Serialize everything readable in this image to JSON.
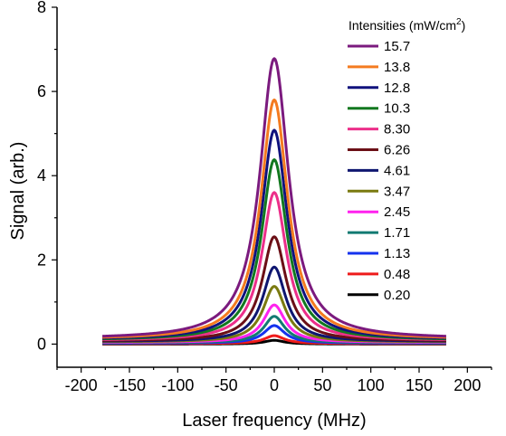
{
  "chart_data": {
    "type": "line",
    "xlabel": "Laser frequency (MHz)",
    "ylabel": "Signal (arb.)",
    "xlim": [
      -225,
      225
    ],
    "ylim": [
      -0.55,
      8
    ],
    "x_ticks": [
      -200,
      -150,
      -100,
      -50,
      0,
      50,
      100,
      150,
      200
    ],
    "y_ticks": [
      0,
      2,
      4,
      6,
      8
    ],
    "x_range_data": [
      -178,
      178
    ],
    "grid": false,
    "legend": {
      "title": "Intensities (mW/cm",
      "title_superscript": "2",
      "title_suffix": ")",
      "placement": "top-right"
    },
    "series": [
      {
        "name": "15.7",
        "color": "#7b1a7e",
        "peak": 6.78,
        "baseline": 0.12,
        "fwhm": 36
      },
      {
        "name": "13.8",
        "color": "#f47b20",
        "peak": 5.8,
        "baseline": 0.11,
        "fwhm": 34
      },
      {
        "name": "12.8",
        "color": "#10127d",
        "peak": 5.08,
        "baseline": 0.1,
        "fwhm": 33
      },
      {
        "name": "10.3",
        "color": "#12781f",
        "peak": 4.38,
        "baseline": 0.09,
        "fwhm": 32
      },
      {
        "name": "8.30",
        "color": "#ec2f8a",
        "peak": 3.6,
        "baseline": 0.08,
        "fwhm": 31
      },
      {
        "name": "6.26",
        "color": "#6b0f16",
        "peak": 2.55,
        "baseline": 0.07,
        "fwhm": 30
      },
      {
        "name": "4.61",
        "color": "#0e1670",
        "peak": 1.83,
        "baseline": 0.06,
        "fwhm": 29
      },
      {
        "name": "3.47",
        "color": "#7a7a10",
        "peak": 1.37,
        "baseline": 0.05,
        "fwhm": 28
      },
      {
        "name": "2.45",
        "color": "#ff22ee",
        "peak": 0.93,
        "baseline": 0.04,
        "fwhm": 27
      },
      {
        "name": "1.71",
        "color": "#127a72",
        "peak": 0.66,
        "baseline": 0.03,
        "fwhm": 26
      },
      {
        "name": "1.13",
        "color": "#1432ee",
        "peak": 0.44,
        "baseline": 0.02,
        "fwhm": 26
      },
      {
        "name": "0.48",
        "color": "#ee1b1b",
        "peak": 0.2,
        "baseline": 0.01,
        "fwhm": 25
      },
      {
        "name": "0.20",
        "color": "#000000",
        "peak": 0.09,
        "baseline": 0.0,
        "fwhm": 25
      }
    ]
  }
}
